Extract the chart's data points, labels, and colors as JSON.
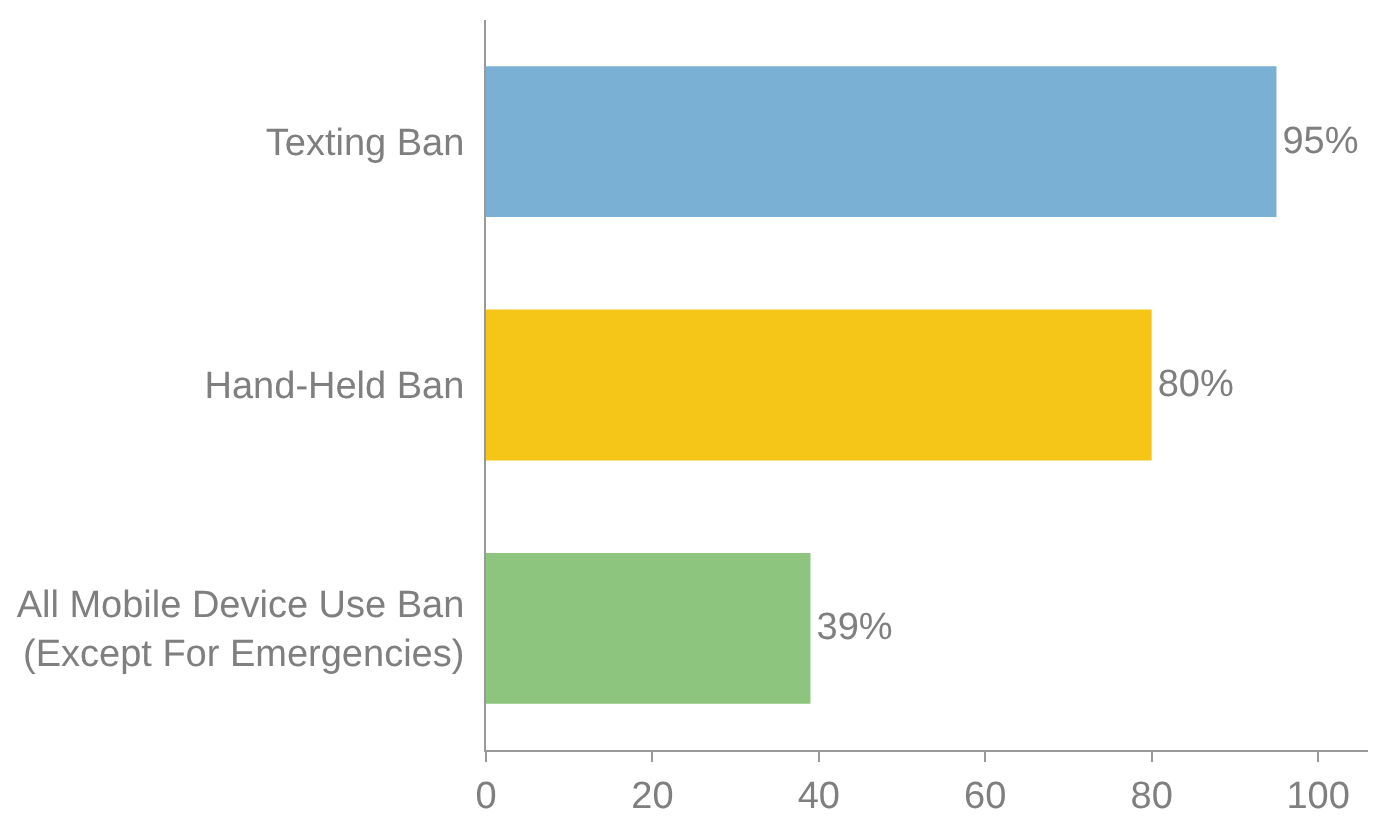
{
  "chart_data": {
    "type": "bar",
    "orientation": "horizontal",
    "categories": [
      "Texting Ban",
      "Hand-Held Ban",
      "All Mobile Device Use Ban\n(Except For Emergencies)"
    ],
    "values": [
      95,
      80,
      39
    ],
    "colors": [
      "#7ab0d4",
      "#f5c518",
      "#8dc57e"
    ],
    "value_labels": [
      "95%",
      "80%",
      "39%"
    ],
    "xlim": [
      0,
      106
    ],
    "xticks": [
      0,
      20,
      40,
      60,
      80,
      100
    ]
  }
}
